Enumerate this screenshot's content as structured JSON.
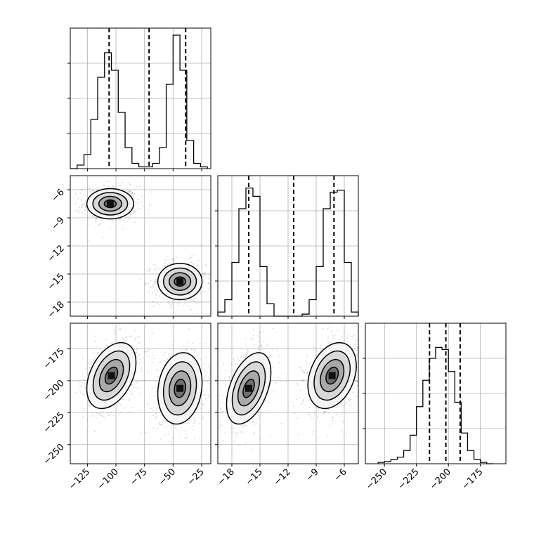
{
  "chart_data": {
    "type": "corner",
    "parameters": [
      {
        "id": "p0",
        "range": [
          -140,
          -17
        ],
        "ticks": [
          -125,
          -100,
          -75,
          -50,
          -25
        ],
        "tick_labels": [
          "−125",
          "−100",
          "−75",
          "−50",
          "−25"
        ]
      },
      {
        "id": "p1",
        "range": [
          -19.5,
          -4.5
        ],
        "ticks": [
          -18,
          -15,
          -12,
          -9,
          -6
        ],
        "tick_labels": [
          "−18",
          "−15",
          "−12",
          "−9",
          "−6"
        ]
      },
      {
        "id": "p2",
        "range": [
          -265,
          -155
        ],
        "ticks": [
          -250,
          -225,
          -200,
          -175
        ],
        "tick_labels": [
          "−250",
          "−225",
          "−200",
          "−175"
        ]
      }
    ],
    "histograms": [
      {
        "param": "p0",
        "edges": [
          -140,
          -134,
          -128,
          -122,
          -116,
          -110,
          -104,
          -98,
          -92,
          -86,
          -80,
          -74,
          -68,
          -62,
          -56,
          -50,
          -44,
          -38,
          -32,
          -26,
          -20
        ],
        "counts": [
          0.0,
          0.1,
          0.4,
          1.4,
          2.6,
          3.3,
          2.8,
          1.6,
          0.6,
          0.15,
          0.05,
          0.05,
          0.15,
          0.6,
          2.4,
          3.8,
          2.8,
          0.8,
          0.15,
          0.05
        ],
        "quantiles": [
          -106,
          -71,
          -39
        ],
        "ylim": [
          0,
          4.0
        ]
      },
      {
        "param": "p1",
        "edges": [
          -19.5,
          -18.75,
          -18.0,
          -17.25,
          -16.5,
          -15.75,
          -15.0,
          -14.25,
          -13.5,
          -12.75,
          -12.0,
          -11.25,
          -10.5,
          -9.75,
          -9.0,
          -8.25,
          -7.5,
          -6.75,
          -6.0,
          -5.25,
          -4.5
        ],
        "counts": [
          0.1,
          0.4,
          1.3,
          2.6,
          3.1,
          2.9,
          1.2,
          0.3,
          0.0,
          0.0,
          0.0,
          0.0,
          0.05,
          0.4,
          1.2,
          2.6,
          3.0,
          3.05,
          1.3,
          0.1
        ],
        "quantiles": [
          -16.2,
          -11.4,
          -7.1
        ],
        "ylim": [
          0,
          3.4
        ]
      },
      {
        "param": "p2",
        "edges": [
          -255,
          -250,
          -245,
          -240,
          -235,
          -230,
          -225,
          -220,
          -215,
          -210,
          -205,
          -200,
          -195,
          -190,
          -185,
          -180,
          -175,
          -170,
          -165
        ],
        "counts": [
          0.03,
          0.05,
          0.1,
          0.15,
          0.3,
          0.65,
          1.3,
          1.9,
          2.4,
          2.65,
          2.6,
          2.1,
          1.4,
          0.7,
          0.3,
          0.1,
          0.03,
          0.0
        ],
        "quantiles": [
          -214.8,
          -202.0,
          -190.8
        ],
        "ylim": [
          0,
          3.2
        ]
      }
    ],
    "panels_2d": [
      {
        "x": "p0",
        "y": "p1",
        "clusters": [
          {
            "center": [
              -105,
              -7.5
            ],
            "sx": 9.5,
            "sy": 0.75,
            "rho": 0.0
          },
          {
            "center": [
              -44,
              -15.8
            ],
            "sx": 9.0,
            "sy": 0.9,
            "rho": 0.0
          }
        ]
      },
      {
        "x": "p0",
        "y": "p2",
        "clusters": [
          {
            "center": [
              -104,
              -196
            ],
            "sx": 10.0,
            "sy": 12.0,
            "rho": 0.4
          },
          {
            "center": [
              -44,
              -206
            ],
            "sx": 9.0,
            "sy": 13.0,
            "rho": 0.15
          }
        ]
      },
      {
        "x": "p1",
        "y": "p2",
        "clusters": [
          {
            "center": [
              -16.2,
              -206
            ],
            "sx": 1.1,
            "sy": 13.0,
            "rho": 0.45
          },
          {
            "center": [
              -7.3,
              -196
            ],
            "sx": 1.2,
            "sy": 12.0,
            "rho": 0.3
          }
        ]
      }
    ],
    "grid": true,
    "title": "",
    "xlabel": "",
    "ylabel": ""
  }
}
